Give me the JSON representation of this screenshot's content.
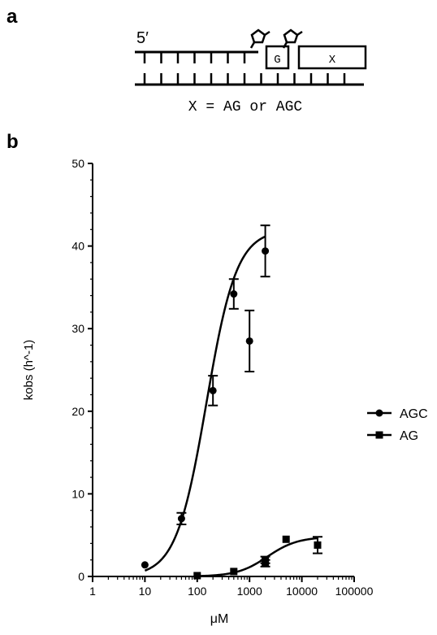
{
  "panels": {
    "a": {
      "label": "a"
    },
    "b": {
      "label": "b"
    }
  },
  "schematic": {
    "end_label": "5′",
    "box_g": "G",
    "box_x": "X",
    "caption": "X = AG or AGC"
  },
  "chart_data": {
    "type": "scatter",
    "x_scale": "log",
    "xlabel": "μM",
    "ylabel": "kobs (h^-1)",
    "xlim": [
      1,
      100000
    ],
    "ylim": [
      0,
      50
    ],
    "x_ticks": [
      "1",
      "10",
      "100",
      "1000",
      "10000",
      "100000"
    ],
    "y_ticks": [
      "0",
      "10",
      "20",
      "30",
      "40",
      "50"
    ],
    "grid": false,
    "legend_position": "right",
    "series": [
      {
        "name": "AGC",
        "marker": "circle",
        "x": [
          10,
          50,
          200,
          500,
          1000,
          2000
        ],
        "y": [
          1.4,
          7.0,
          22.5,
          34.2,
          28.5,
          39.4
        ],
        "err": [
          0,
          0.7,
          1.8,
          1.8,
          3.7,
          3.1
        ],
        "fit_label": "sigmoidal fit"
      },
      {
        "name": "AG",
        "marker": "square",
        "x": [
          100,
          500,
          2000,
          2000,
          5000,
          20000
        ],
        "y": [
          0.1,
          0.6,
          1.6,
          2.0,
          4.5,
          3.8
        ],
        "err": [
          0,
          0,
          0.4,
          0.4,
          0,
          1.0
        ],
        "fit_label": "sigmoidal fit"
      }
    ]
  }
}
